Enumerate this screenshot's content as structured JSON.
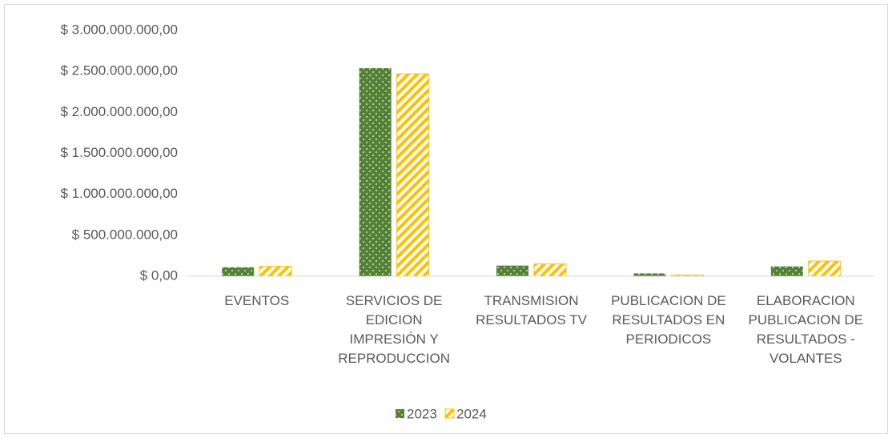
{
  "chart_data": {
    "type": "bar",
    "categories": [
      "EVENTOS",
      "SERVICIOS DE EDICION IMPRESIÓN Y REPRODUCCION",
      "TRANSMISION RESULTADOS TV",
      "PUBLICACION DE RESULTADOS EN PERIODICOS",
      "ELABORACION PUBLICACION DE RESULTADOS - VOLANTES"
    ],
    "series": [
      {
        "name": "2023",
        "color": "#548235",
        "values": [
          110000000,
          2540000000,
          130000000,
          35000000,
          120000000
        ]
      },
      {
        "name": "2024",
        "color": "#ffc000",
        "values": [
          120000000,
          2470000000,
          150000000,
          15000000,
          185000000
        ]
      }
    ],
    "ylim": [
      0,
      3000000000
    ],
    "yticks": [
      {
        "value": 0,
        "label": "$ 0,00"
      },
      {
        "value": 500000000,
        "label": "$ 500.000.000,00"
      },
      {
        "value": 1000000000,
        "label": "$ 1.000.000.000,00"
      },
      {
        "value": 1500000000,
        "label": "$ 1.500.000.000,00"
      },
      {
        "value": 2000000000,
        "label": "$ 2.000.000.000,00"
      },
      {
        "value": 2500000000,
        "label": "$ 2.500.000.000,00"
      },
      {
        "value": 3000000000,
        "label": "$ 3.000.000.000,00"
      }
    ],
    "legend": "bottom"
  }
}
